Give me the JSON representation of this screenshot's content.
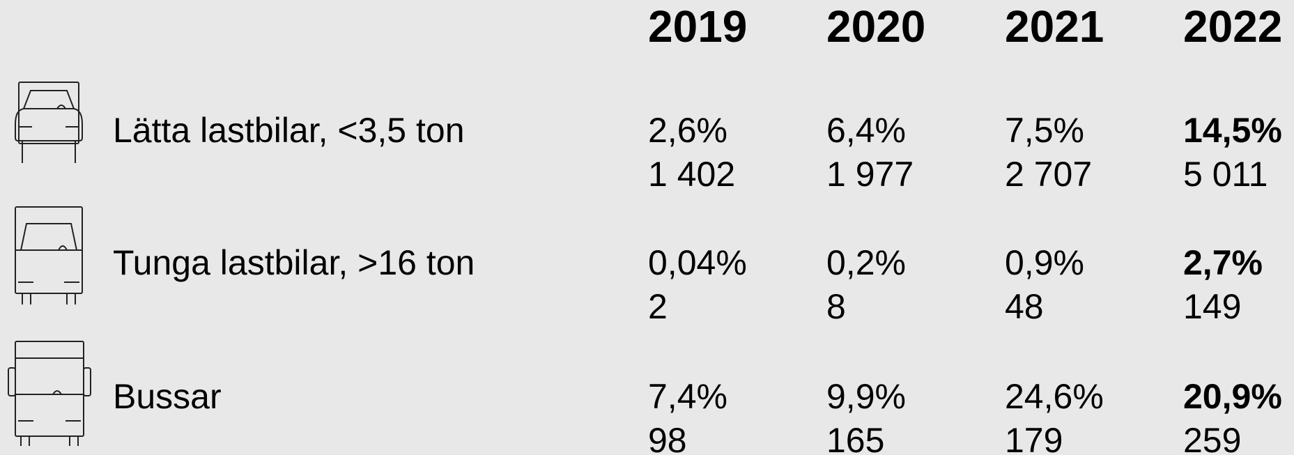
{
  "table": {
    "columns": [
      "2019",
      "2020",
      "2021",
      "2022"
    ],
    "rows": [
      {
        "label": "Lätta lastbilar, <3,5 ton",
        "shares": [
          "2,6%",
          "6,4%",
          "7,5%",
          "14,5%"
        ],
        "counts": [
          "1 402",
          "1 977",
          "2 707",
          "5 011"
        ]
      },
      {
        "label": "Tunga lastbilar, >16 ton",
        "shares": [
          "0,04%",
          "0,2%",
          "0,9%",
          "2,7%"
        ],
        "counts": [
          "2",
          "8",
          "48",
          "149"
        ]
      },
      {
        "label": "Bussar",
        "shares": [
          "7,4%",
          "9,9%",
          "24,6%",
          "20,9%"
        ],
        "counts": [
          "98",
          "165",
          "179",
          "259"
        ]
      }
    ]
  }
}
